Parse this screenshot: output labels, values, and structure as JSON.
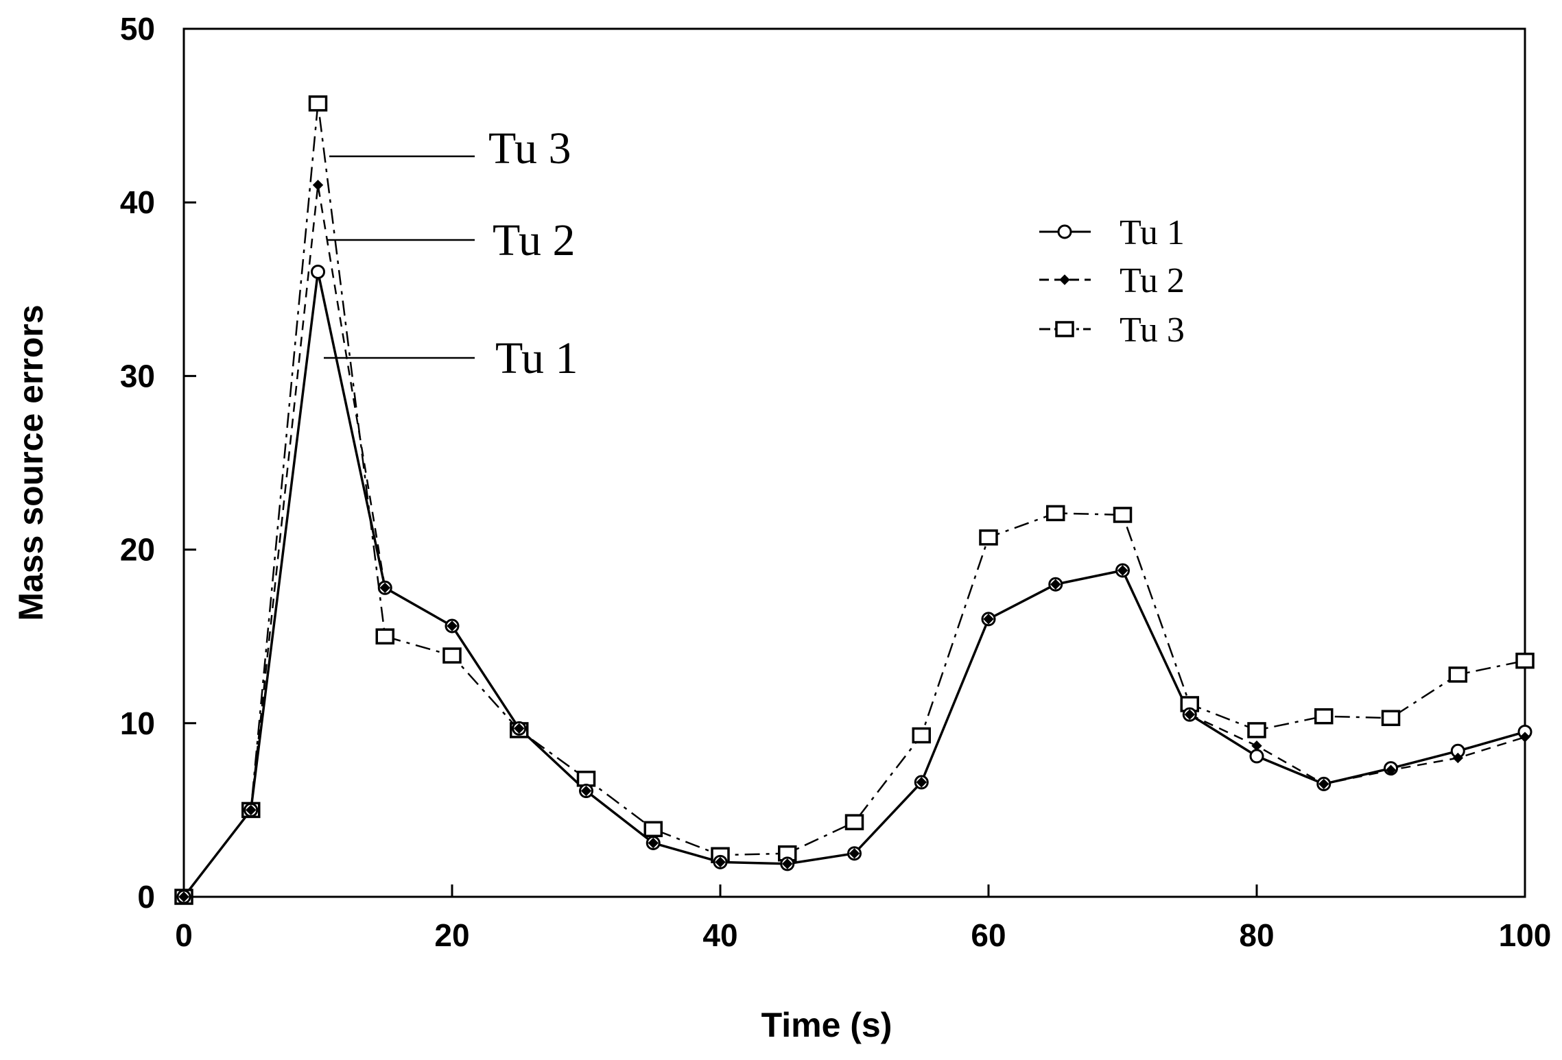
{
  "chart_data": {
    "type": "line",
    "title": "",
    "xlabel": "Time (s)",
    "ylabel": "Mass source errors",
    "xlim": [
      0,
      100
    ],
    "ylim": [
      0,
      50
    ],
    "xticks": [
      0,
      20,
      40,
      60,
      80,
      100
    ],
    "yticks": [
      0,
      10,
      20,
      30,
      40,
      50
    ],
    "x": [
      0,
      5,
      10,
      15,
      20,
      25,
      30,
      35,
      40,
      45,
      50,
      55,
      60,
      65,
      70,
      75,
      80,
      85,
      90,
      95,
      100
    ],
    "series": [
      {
        "name": "Tu 1",
        "marker": "circle",
        "linestyle": "solid",
        "values": [
          0,
          5,
          36,
          17.8,
          15.6,
          9.7,
          6.1,
          3.1,
          2.0,
          1.9,
          2.5,
          6.6,
          16.0,
          18.0,
          18.8,
          10.5,
          8.1,
          6.5,
          7.4,
          8.4,
          9.5
        ]
      },
      {
        "name": "Tu 2",
        "marker": "diamond",
        "linestyle": "dashed",
        "values": [
          0,
          5,
          41,
          17.8,
          15.6,
          9.7,
          6.1,
          3.1,
          2.0,
          1.9,
          2.5,
          6.6,
          16.0,
          18.0,
          18.8,
          10.5,
          8.7,
          6.5,
          7.3,
          8.0,
          9.2
        ]
      },
      {
        "name": "Tu 3",
        "marker": "square",
        "linestyle": "dashdot",
        "values": [
          0,
          5,
          45.7,
          15.0,
          13.9,
          9.6,
          6.8,
          3.9,
          2.4,
          2.5,
          4.3,
          9.3,
          20.7,
          22.1,
          22.0,
          11.1,
          9.6,
          10.4,
          10.3,
          12.8,
          13.6
        ]
      }
    ],
    "annotations": [
      "Tu 3",
      "Tu 2",
      "Tu 1"
    ],
    "legend": {
      "position": "upper-right",
      "entries": [
        "Tu 1",
        "Tu 2",
        "Tu 3"
      ]
    },
    "grid": false
  }
}
